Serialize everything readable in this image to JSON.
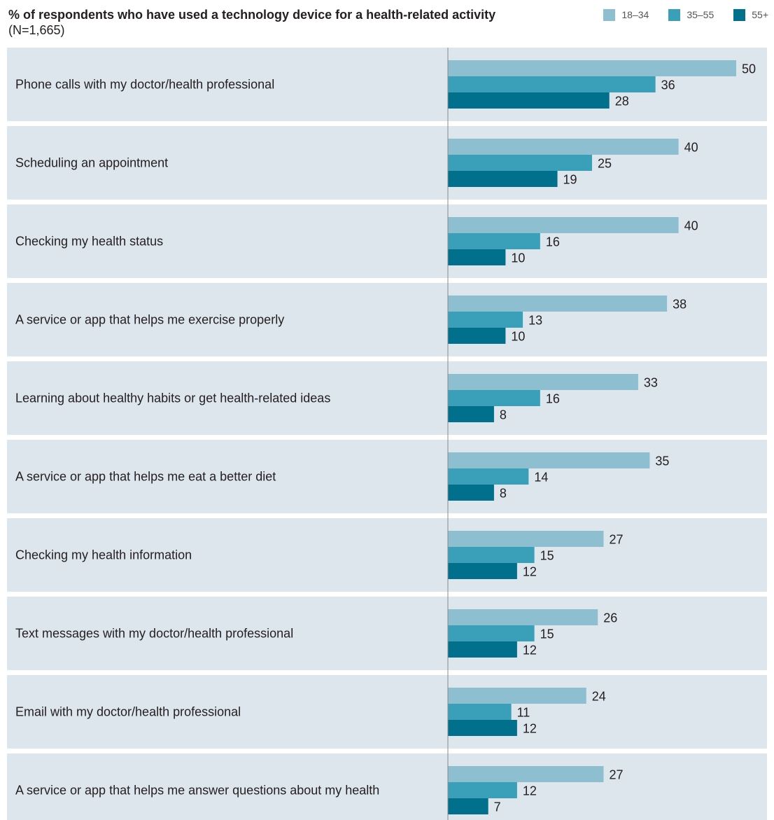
{
  "header": {
    "title_bold": "% of respondents who have used a technology device for a health-related activity",
    "title_note": "(N=1,665)"
  },
  "legend": [
    {
      "label": "18–34",
      "color": "#8dbfd1"
    },
    {
      "label": "35–55",
      "color": "#3a9fb8"
    },
    {
      "label": "55+",
      "color": "#00708c"
    }
  ],
  "colors": {
    "panel": "#dde6ec",
    "axis": "#8a8a8a",
    "text": "#231f20"
  },
  "chart_data": {
    "type": "bar",
    "orientation": "horizontal",
    "categories": [
      "Phone calls with my doctor/health professional",
      "Scheduling an appointment",
      "Checking my health status",
      "A service or app that helps me exercise properly",
      "Learning about healthy habits or get health-related ideas",
      "A service or app that helps me eat a better diet",
      "Checking my health information",
      "Text messages with my doctor/health professional",
      "Email with my doctor/health professional",
      "A service or app that helps me answer questions about my  health"
    ],
    "series": [
      {
        "name": "18–34",
        "values": [
          50,
          40,
          40,
          38,
          33,
          35,
          27,
          26,
          24,
          27
        ]
      },
      {
        "name": "35–55",
        "values": [
          36,
          25,
          16,
          13,
          16,
          14,
          15,
          15,
          11,
          12
        ]
      },
      {
        "name": "55+",
        "values": [
          28,
          19,
          10,
          10,
          8,
          8,
          12,
          12,
          12,
          7
        ]
      }
    ],
    "xlim": [
      0,
      50
    ]
  }
}
